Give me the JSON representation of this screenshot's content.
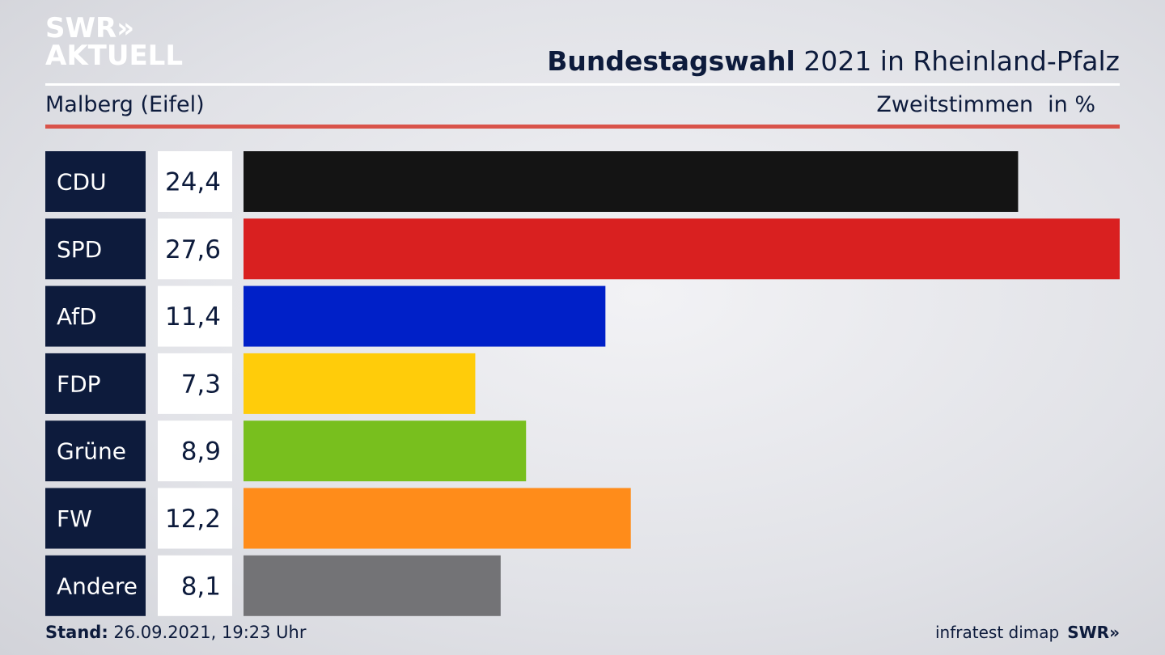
{
  "logo": {
    "line1": "SWR»",
    "line2": "AKTUELL"
  },
  "header": {
    "title_bold": "Bundestagswahl",
    "title_rest": " 2021 in Rheinland-Pfalz"
  },
  "subheader": {
    "region": "Malberg (Eifel)",
    "measure": "Zweitstimmen",
    "unit": "in %"
  },
  "footer": {
    "stand_label": "Stand:",
    "stand_value": " 26.09.2021, 19:23 Uhr",
    "source": "infratest dimap",
    "brand": "SWR»"
  },
  "colors": {
    "label_bg": "#0d1b3c",
    "rule": "#d9534a"
  },
  "chart_data": {
    "type": "bar",
    "orientation": "horizontal",
    "categories": [
      "CDU",
      "SPD",
      "AfD",
      "FDP",
      "Grüne",
      "FW",
      "Andere"
    ],
    "values": [
      24.4,
      27.6,
      11.4,
      7.3,
      8.9,
      12.2,
      8.1
    ],
    "value_labels": [
      "24,4",
      "27,6",
      "11,4",
      "7,3",
      "8,9",
      "12,2",
      "8,1"
    ],
    "colors": [
      "#141414",
      "#d92020",
      "#0020c8",
      "#ffcc0a",
      "#78bf1e",
      "#ff8c1a",
      "#737376"
    ],
    "xlim": [
      0,
      27.6
    ],
    "grid": false,
    "legend": "none"
  }
}
